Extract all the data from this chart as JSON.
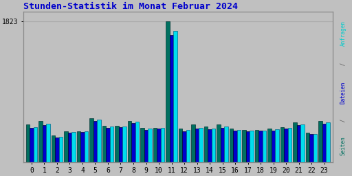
{
  "title": "Stunden-Statistik im Monat Februar 2024",
  "title_color": "#0000cc",
  "title_fontsize": 9.5,
  "background_color": "#c0c0c0",
  "plot_bg_color": "#c0c0c0",
  "ytick_label": "1823",
  "hours": [
    0,
    1,
    2,
    3,
    4,
    5,
    6,
    7,
    8,
    9,
    10,
    11,
    12,
    13,
    14,
    15,
    16,
    17,
    18,
    19,
    20,
    21,
    22,
    23
  ],
  "seiten": [
    490,
    530,
    340,
    400,
    400,
    570,
    470,
    465,
    535,
    440,
    440,
    1823,
    430,
    490,
    460,
    490,
    430,
    415,
    415,
    430,
    450,
    510,
    380,
    530
  ],
  "dateien": [
    445,
    480,
    320,
    380,
    390,
    530,
    445,
    450,
    505,
    415,
    430,
    1650,
    400,
    435,
    420,
    445,
    405,
    400,
    405,
    410,
    435,
    475,
    360,
    500
  ],
  "anfragen": [
    455,
    495,
    330,
    390,
    400,
    545,
    460,
    460,
    520,
    430,
    440,
    1700,
    415,
    445,
    430,
    460,
    415,
    410,
    410,
    420,
    445,
    485,
    365,
    515
  ],
  "color_seiten": "#007060",
  "color_dateien": "#0000cc",
  "color_anfragen": "#00ddee",
  "ylim": [
    0,
    1950
  ],
  "yticks": [
    1823
  ],
  "grid_color": "#aaaaaa",
  "bar_width": 0.3,
  "right_label": "Seiten / Dateien / Anfragen",
  "right_label_color_s": "#007060",
  "right_label_color_d": "#0000cc",
  "right_label_color_a": "#00cccc"
}
